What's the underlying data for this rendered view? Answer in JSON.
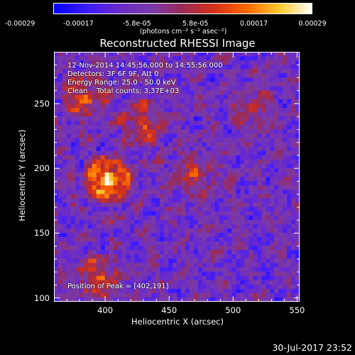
{
  "chart_data": {
    "type": "heatmap",
    "title": "Reconstructed RHESSI Image",
    "xlabel": "Heliocentric X (arcsec)",
    "ylabel": "Heliocentric Y (arcsec)",
    "xlim": [
      360,
      552
    ],
    "ylim": [
      97,
      290
    ],
    "x_ticks": [
      "400",
      "450",
      "500",
      "550"
    ],
    "y_ticks": [
      "100",
      "150",
      "200",
      "250"
    ],
    "colorbar": {
      "ticks": [
        "-0.00029",
        "-0.00017",
        "-5.8e-05",
        "5.8e-05",
        "0.00017",
        "0.00029"
      ],
      "units": "(photons cm⁻² s⁻¹ asec⁻²)",
      "range": [
        -0.00029,
        0.00029
      ]
    },
    "annotations": {
      "time": "12-Nov-2014 14:45:56.000 to 14:55:56.000",
      "detectors": "Detectors: 3F 6F 9F, Att 0",
      "energy": "Energy Range: 25.0 - 50.0 keV",
      "clean": "Clean    Total counts: 3.37E+03",
      "peak": "Position of Peak = [402,191]"
    },
    "peak": [
      402,
      191
    ],
    "sources": [
      {
        "x": 402,
        "y": 191,
        "intensity": 1.0
      },
      {
        "x": 385,
        "y": 255,
        "intensity": 0.55
      },
      {
        "x": 430,
        "y": 235,
        "intensity": 0.45
      },
      {
        "x": 395,
        "y": 115,
        "intensity": 0.5
      },
      {
        "x": 470,
        "y": 195,
        "intensity": 0.35
      },
      {
        "x": 515,
        "y": 245,
        "intensity": 0.35
      }
    ]
  },
  "datestamp": "30-Jul-2017 23:52"
}
